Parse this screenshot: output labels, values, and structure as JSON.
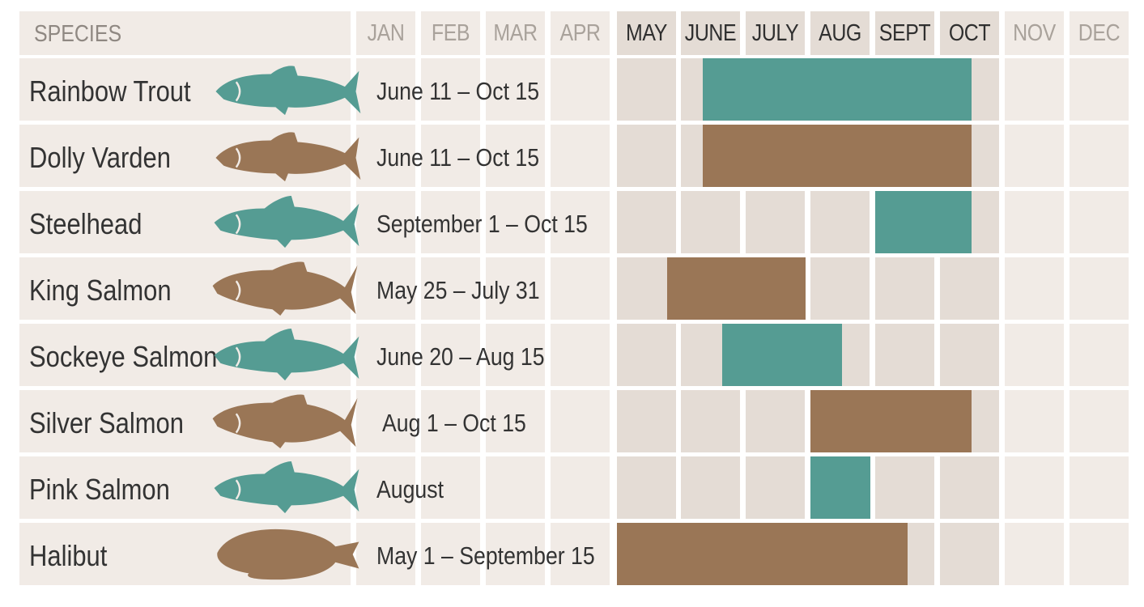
{
  "colors": {
    "background": "#ffffff",
    "cell_light": "#f1ebe6",
    "cell_active": "#e4dcd5",
    "teal": "#559c93",
    "brown": "#9a7656"
  },
  "chart_data": {
    "type": "bar",
    "subtype": "gantt",
    "species_header": "SPECIES",
    "months": [
      "JAN",
      "FEB",
      "MAR",
      "APR",
      "MAY",
      "JUNE",
      "JULY",
      "AUG",
      "SEPT",
      "OCT",
      "NOV",
      "DEC"
    ],
    "active_months": [
      "MAY",
      "JUNE",
      "JULY",
      "AUG",
      "SEPT",
      "OCT"
    ],
    "series": [
      {
        "species": "Rainbow Trout",
        "range": "June 11 – Oct 15",
        "start": [
          6,
          11
        ],
        "end": [
          10,
          15
        ],
        "color": "teal",
        "icon": "trout-icon"
      },
      {
        "species": "Dolly Varden",
        "range": "June 11 – Oct 15",
        "start": [
          6,
          11
        ],
        "end": [
          10,
          15
        ],
        "color": "brown",
        "icon": "char-icon"
      },
      {
        "species": "Steelhead",
        "range": "September 1 – Oct 15",
        "start": [
          9,
          1
        ],
        "end": [
          10,
          15
        ],
        "color": "teal",
        "icon": "steelhead-icon"
      },
      {
        "species": "King Salmon",
        "range": "May 25 – July 31",
        "start": [
          5,
          25
        ],
        "end": [
          7,
          31
        ],
        "color": "brown",
        "icon": "king-salmon-icon"
      },
      {
        "species": "Sockeye Salmon",
        "range": "June 20 – Aug 15",
        "start": [
          6,
          20
        ],
        "end": [
          8,
          15
        ],
        "color": "teal",
        "icon": "sockeye-salmon-icon"
      },
      {
        "species": "Silver Salmon",
        "range": "Aug 1 – Oct 15",
        "start": [
          8,
          1
        ],
        "end": [
          10,
          15
        ],
        "color": "brown",
        "icon": "silver-salmon-icon"
      },
      {
        "species": "Pink Salmon",
        "range": "August",
        "start": [
          8,
          1
        ],
        "end": [
          8,
          31
        ],
        "color": "teal",
        "icon": "pink-salmon-icon"
      },
      {
        "species": "Halibut",
        "range": "May 1 – September 15",
        "start": [
          5,
          1
        ],
        "end": [
          9,
          15
        ],
        "color": "brown",
        "icon": "halibut-icon"
      }
    ]
  }
}
